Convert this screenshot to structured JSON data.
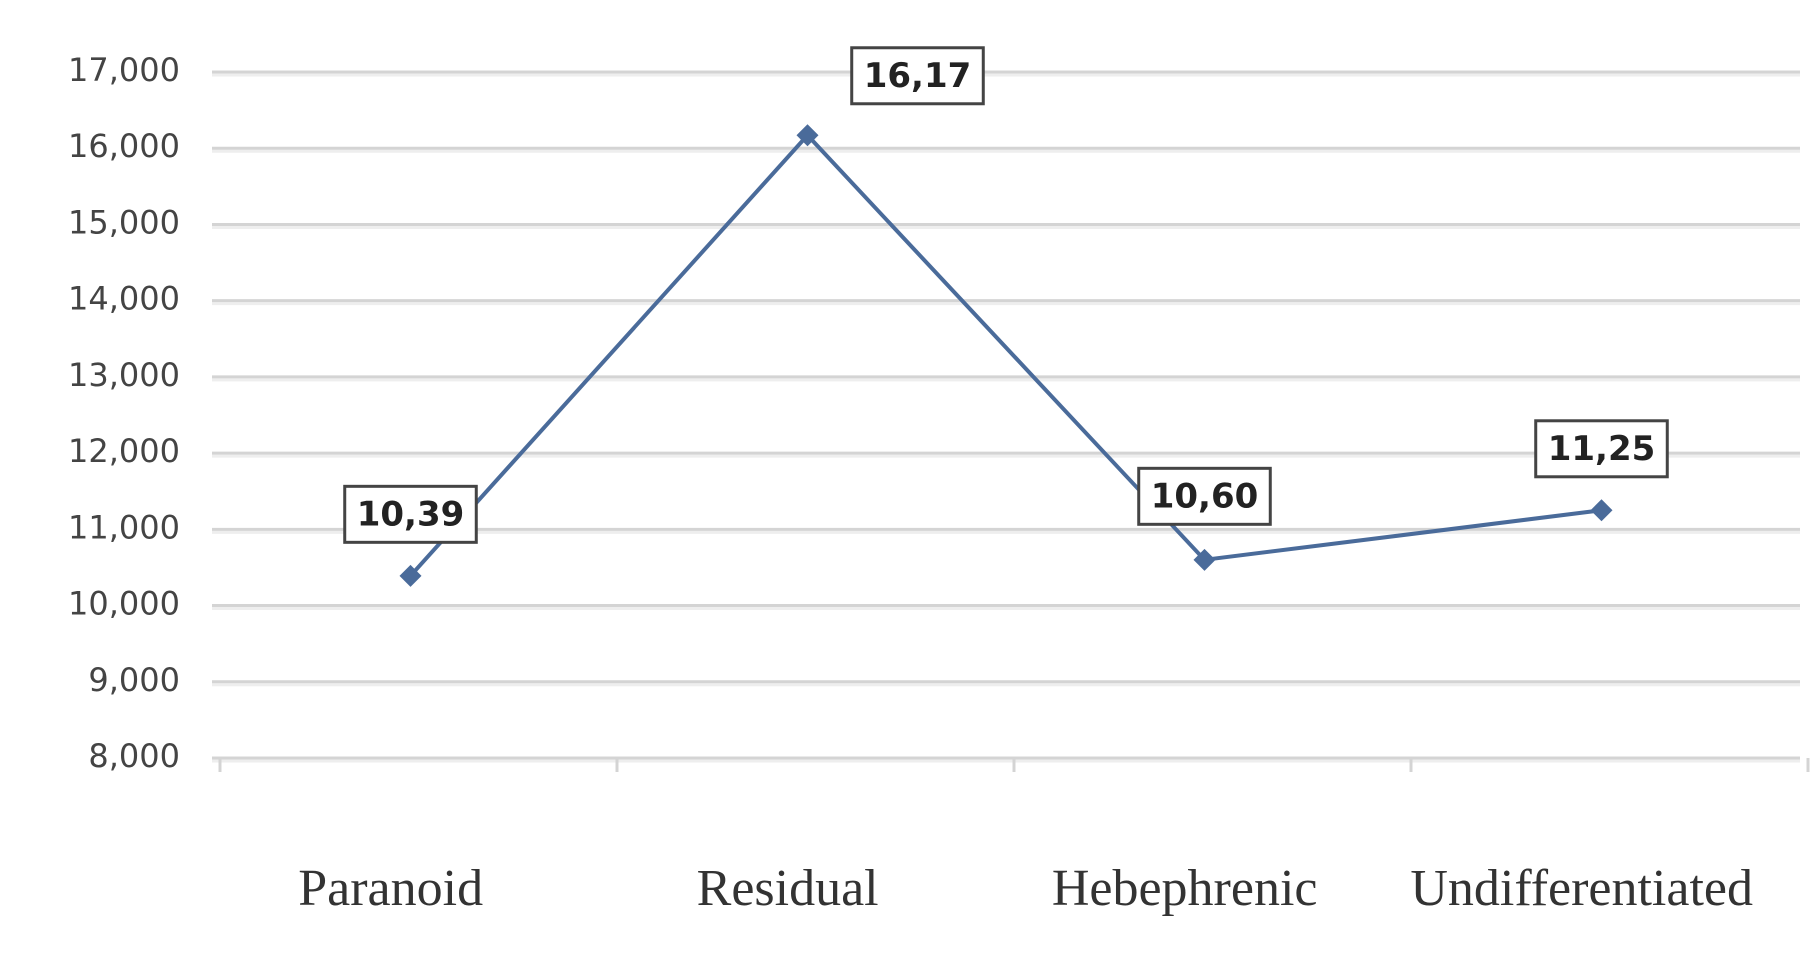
{
  "chart_data": {
    "type": "line",
    "categories": [
      "Paranoid",
      "Residual",
      "Hebephrenic",
      "Undifferentiated"
    ],
    "series": [
      {
        "color": "#4a6b9a",
        "values": [
          10.39,
          16.17,
          10.6,
          11.25
        ],
        "value_labels": [
          "10,39",
          "16,17",
          "10,60",
          "11,25"
        ]
      }
    ],
    "ylim": [
      8,
      17
    ],
    "yticks": [
      {
        "value": 8,
        "label": "8,000"
      },
      {
        "value": 9,
        "label": "9,000"
      },
      {
        "value": 10,
        "label": "10,000"
      },
      {
        "value": 11,
        "label": "11,000"
      },
      {
        "value": 12,
        "label": "12,000"
      },
      {
        "value": 13,
        "label": "13,000"
      },
      {
        "value": 14,
        "label": "14,000"
      },
      {
        "value": 15,
        "label": "15,000"
      },
      {
        "value": 16,
        "label": "16,000"
      },
      {
        "value": 17,
        "label": "17,000"
      }
    ],
    "grid": true
  }
}
